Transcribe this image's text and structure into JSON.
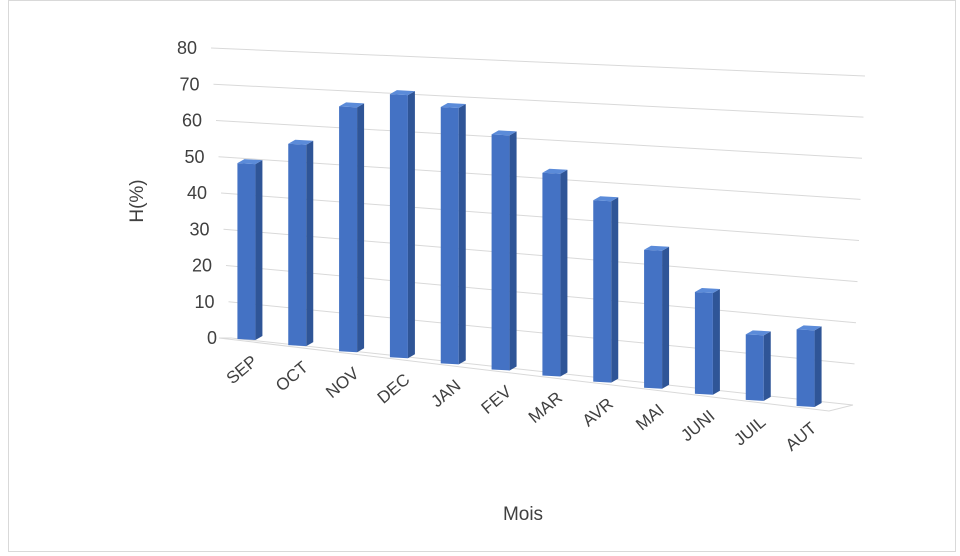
{
  "chart_data": {
    "type": "bar",
    "title": "",
    "xlabel": "Mois",
    "ylabel": "H(%)",
    "ylim": [
      0,
      80
    ],
    "yticks": [
      0,
      10,
      20,
      30,
      40,
      50,
      60,
      70,
      80
    ],
    "grid": true,
    "legend": "none",
    "categories": [
      "SEP",
      "OCT",
      "NOV",
      "DEC",
      "JAN",
      "FEV",
      "MAR",
      "AVR",
      "MAI",
      "JUNI",
      "JUIL",
      "AUT"
    ],
    "series": [
      {
        "values": [
          49,
          56,
          68,
          73,
          71,
          65,
          56,
          50,
          38,
          28,
          18,
          21
        ]
      }
    ],
    "colors": {
      "bar_front": "#4472c4",
      "bar_side": "#2f5597",
      "bar_top": "#5b8bd9",
      "grid": "#d9d9d9",
      "text": "#404040"
    }
  }
}
